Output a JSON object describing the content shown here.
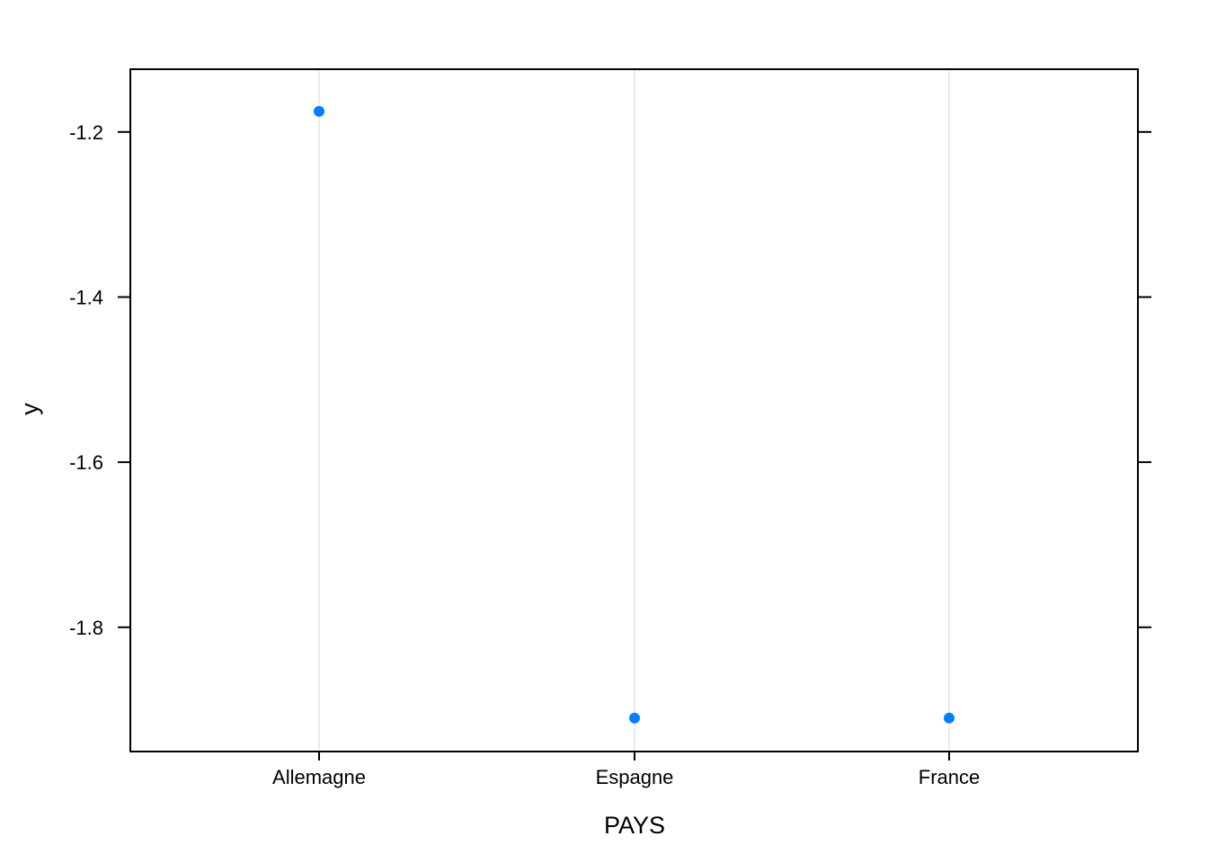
{
  "chart_data": {
    "type": "scatter",
    "title": "",
    "xlabel": "PAYS",
    "ylabel": "y",
    "categories": [
      "Allemagne",
      "Espagne",
      "France"
    ],
    "values": [
      -1.175,
      -1.91,
      -1.91
    ],
    "ylim": [
      -1.9505,
      -1.124
    ],
    "y_ticks": [
      -1.2,
      -1.4,
      -1.6,
      -1.8
    ],
    "y_tick_labels": [
      "-1.2",
      "-1.4",
      "-1.6",
      "-1.8"
    ],
    "grid": "vertical reference lines at categories",
    "legend": "none",
    "colors": {
      "point": "#0080ff",
      "reference_line": "#e6e6e6",
      "axis": "#000000"
    }
  }
}
